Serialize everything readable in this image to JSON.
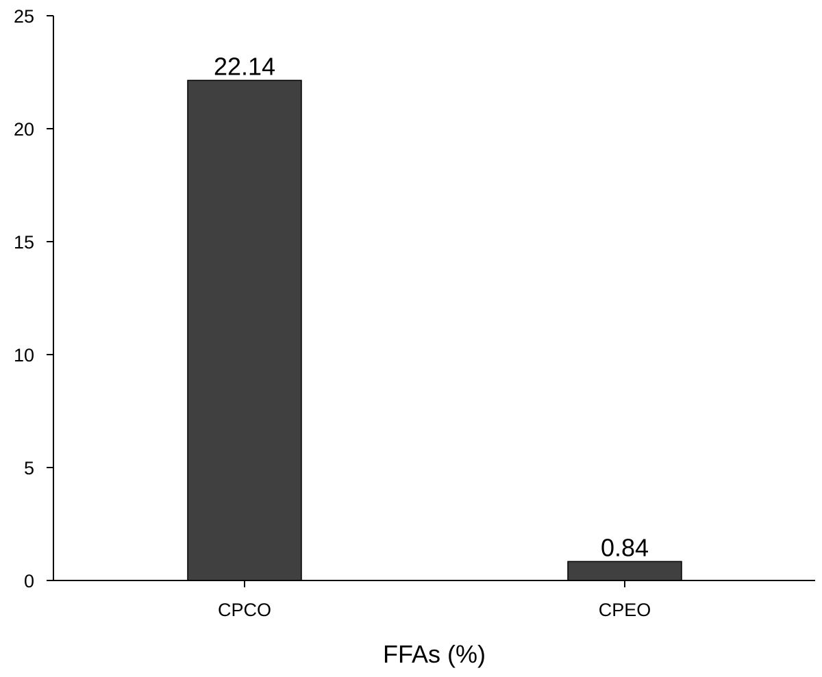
{
  "chart_data": {
    "type": "bar",
    "categories": [
      "CPCO",
      "CPEO"
    ],
    "values": [
      22.14,
      0.84
    ],
    "data_labels": [
      "22.14",
      "0.84"
    ],
    "title": "",
    "xlabel": "FFAs (%)",
    "ylabel": "",
    "ylim": [
      0,
      25
    ],
    "yticks": [
      0,
      5,
      10,
      15,
      20,
      25
    ],
    "grid": false,
    "legend": "none",
    "bar_color": "#404040"
  }
}
